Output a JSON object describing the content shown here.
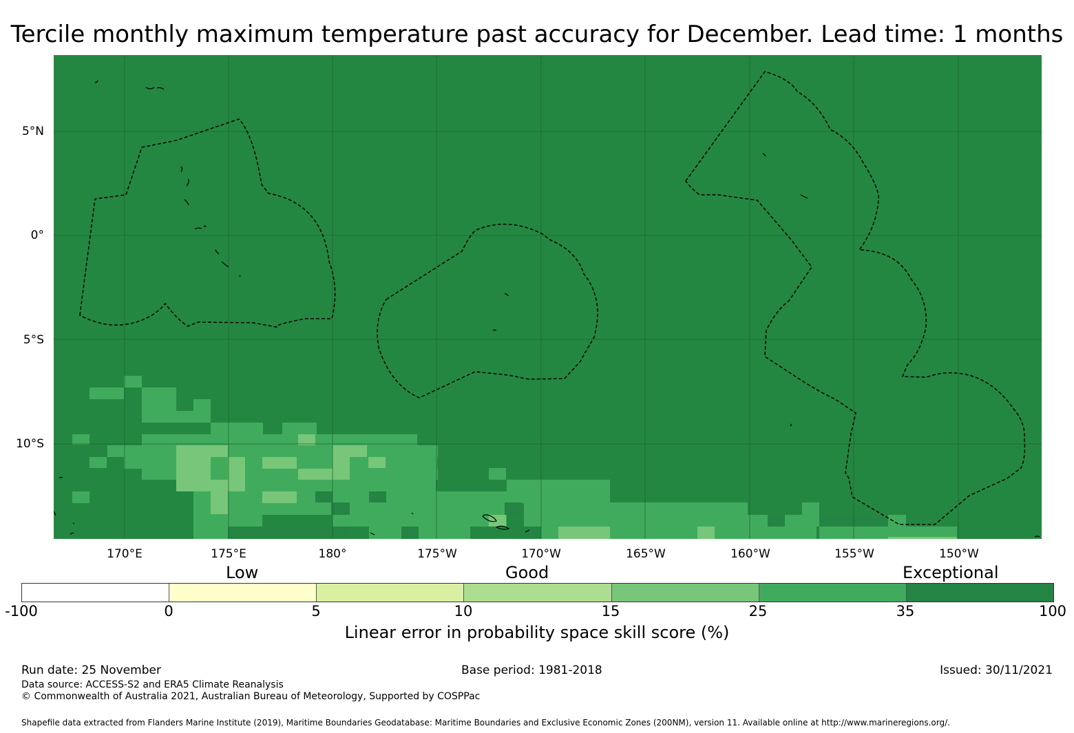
{
  "title": "Tercile monthly maximum temperature past accuracy for December. Lead time: 1 months",
  "map": {
    "lat_labels": [
      "5°N",
      "0°",
      "5°S",
      "10°S"
    ],
    "lon_labels": [
      "170°E",
      "175°E",
      "180°",
      "175°W",
      "170°W",
      "165°W",
      "160°W",
      "155°W",
      "150°W"
    ],
    "background_color": "#248741"
  },
  "legend": {
    "categories": [
      "Low",
      "Good",
      "Exceptional"
    ],
    "ticks": [
      "-100",
      "0",
      "5",
      "10",
      "15",
      "25",
      "35",
      "100"
    ],
    "colors": [
      "#ffffff",
      "#ffffcc",
      "#d9f0a3",
      "#addd8e",
      "#78c679",
      "#41ab5d",
      "#238443"
    ],
    "title": "Linear error in probability space skill score (%)"
  },
  "footer": {
    "run_date": "Run date: 25 November",
    "base_period": "Base period: 1981-2018",
    "issued": "Issued: 30/11/2021",
    "data_source": "Data source: ACCESS-S2 and ERA5 Climate Reanalysis",
    "copyright": "© Commonwealth of Australia 2021, Australian Bureau of Meteorology, Supported by COSPPac",
    "shapefile": "Shapefile data extracted from Flanders Marine Institute (2019), Maritime Boundaries Geodatabase: Maritime Boundaries and Exclusive Economic Zones (200NM), version 11. Available online at http://www.marineregions.org/."
  }
}
